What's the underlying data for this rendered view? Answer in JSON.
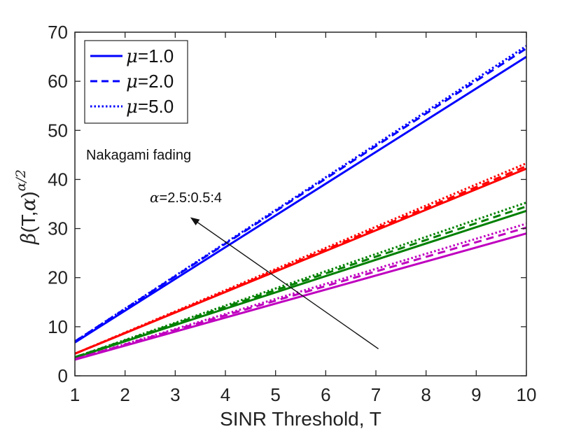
{
  "chart_data": {
    "type": "line",
    "xlabel": "SINR Threshold, T",
    "ylabel_prefix": "β",
    "ylabel_args": "(T,",
    "ylabel_alpha": "α",
    "ylabel_close": ")",
    "ylabel_exp": "α/2",
    "xlim": [
      1,
      10
    ],
    "ylim": [
      0,
      70
    ],
    "xticks": [
      1,
      2,
      3,
      4,
      5,
      6,
      7,
      8,
      9,
      10
    ],
    "yticks": [
      0,
      10,
      20,
      30,
      40,
      50,
      60,
      70
    ],
    "grid": false,
    "legend_position": "top-left",
    "legend": [
      {
        "symbol": "μ",
        "text": "=1.0",
        "style": "solid"
      },
      {
        "symbol": "μ",
        "text": "=2.0",
        "style": "dashed"
      },
      {
        "symbol": "μ",
        "text": "=5.0",
        "style": "dotted"
      }
    ],
    "annotations": {
      "fading_text": "Nakagami fading",
      "alpha_symbol": "α",
      "alpha_text": "=2.5:0.5:4",
      "arrow_from": [
        7.05,
        5.5
      ],
      "arrow_to": [
        3.3,
        32.3
      ]
    },
    "colors": {
      "alpha_4.0": "#0000ff",
      "alpha_3.5": "#ff0000",
      "alpha_3.0": "#008000",
      "alpha_2.5": "#bf00bf"
    },
    "series": [
      {
        "group": "alpha_4.0",
        "style": "solid",
        "x": [
          1,
          10
        ],
        "y": [
          6.8,
          65.0
        ]
      },
      {
        "group": "alpha_4.0",
        "style": "dashed",
        "x": [
          1,
          10
        ],
        "y": [
          7.0,
          66.7
        ]
      },
      {
        "group": "alpha_4.0",
        "style": "dotted",
        "x": [
          1,
          10
        ],
        "y": [
          7.0,
          67.2
        ]
      },
      {
        "group": "alpha_3.5",
        "style": "solid",
        "x": [
          1,
          10
        ],
        "y": [
          4.5,
          42.2
        ]
      },
      {
        "group": "alpha_3.5",
        "style": "dashed",
        "x": [
          1,
          10
        ],
        "y": [
          4.5,
          42.7
        ]
      },
      {
        "group": "alpha_3.5",
        "style": "dotted",
        "x": [
          1,
          10
        ],
        "y": [
          4.5,
          43.3
        ]
      },
      {
        "group": "alpha_3.0",
        "style": "solid",
        "x": [
          1,
          10
        ],
        "y": [
          3.7,
          33.6
        ]
      },
      {
        "group": "alpha_3.0",
        "style": "dashed",
        "x": [
          1,
          10
        ],
        "y": [
          3.8,
          34.5
        ]
      },
      {
        "group": "alpha_3.0",
        "style": "dotted",
        "x": [
          1,
          10
        ],
        "y": [
          3.8,
          35.3
        ]
      },
      {
        "group": "alpha_2.5",
        "style": "solid",
        "x": [
          1,
          10
        ],
        "y": [
          3.3,
          29.0
        ]
      },
      {
        "group": "alpha_2.5",
        "style": "dashed",
        "x": [
          1,
          10
        ],
        "y": [
          3.4,
          30.2
        ]
      },
      {
        "group": "alpha_2.5",
        "style": "dotted",
        "x": [
          1,
          10
        ],
        "y": [
          3.4,
          31.0
        ]
      }
    ]
  }
}
